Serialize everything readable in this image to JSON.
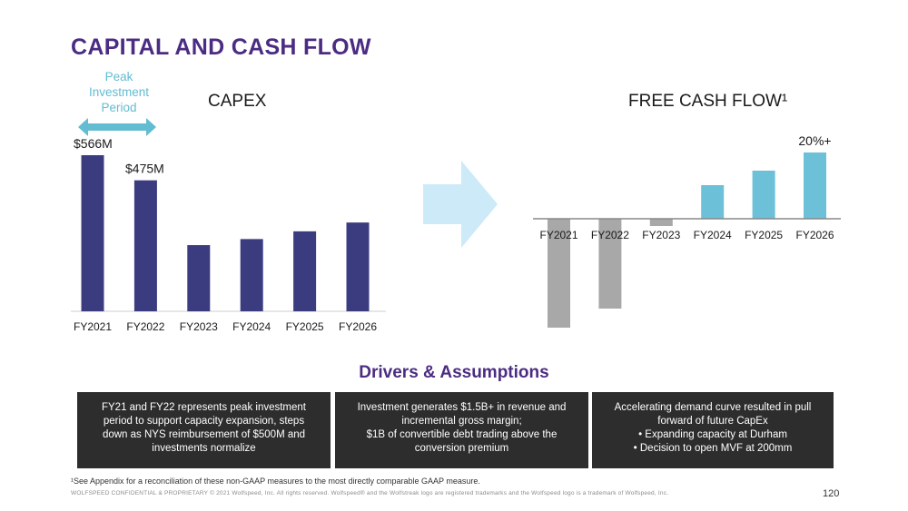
{
  "title": "CAPITAL AND CASH FLOW",
  "peak": {
    "lines": [
      "Peak",
      "Investment",
      "Period"
    ]
  },
  "chart_data": [
    {
      "type": "bar",
      "title": "CAPEX",
      "categories": [
        "FY2021",
        "FY2022",
        "FY2023",
        "FY2024",
        "FY2025",
        "FY2026"
      ],
      "values": [
        566,
        475,
        240,
        262,
        290,
        322
      ],
      "unit": "$M",
      "data_labels": [
        "$566M",
        "$475M",
        "",
        "",
        "",
        ""
      ],
      "colors": [
        "#3b3c80"
      ]
    },
    {
      "type": "bar",
      "title": "FREE CASH FLOW¹",
      "categories": [
        "FY2021",
        "FY2022",
        "FY2023",
        "FY2024",
        "FY2025",
        "FY2026"
      ],
      "values": [
        -120,
        -99,
        -8,
        37,
        53,
        73
      ],
      "data_labels": [
        "",
        "",
        "",
        "",
        "",
        "20%+"
      ],
      "colors": {
        "negative": "#a8a8a8",
        "positive": "#6cc0d8"
      }
    }
  ],
  "drivers": {
    "title": "Drivers & Assumptions",
    "boxes": [
      {
        "lines": [
          "FY21 and FY22 represents peak investment",
          "period to support capacity expansion, steps",
          "down as NYS reimbursement of $500M and",
          "investments normalize"
        ]
      },
      {
        "lines": [
          "Investment generates $1.5B+ in revenue and",
          "incremental gross margin;",
          "$1B of convertible debt trading above the",
          "conversion premium"
        ]
      },
      {
        "lines": [
          "Accelerating demand curve resulted in pull",
          "forward of future CapEx",
          "• Expanding capacity at Durham",
          "• Decision to open MVF at 200mm"
        ]
      }
    ]
  },
  "footnote": "¹See Appendix for a reconciliation of these non-GAAP measures to the most directly comparable GAAP measure.",
  "legal": "WOLFSPEED CONFIDENTIAL & PROPRIETARY © 2021 Wolfspeed, Inc. All rights reserved. Wolfspeed® and the Wolfstreak logo are registered trademarks and the Wolfspeed logo is a trademark of Wolfspeed, Inc.",
  "page_number": "120",
  "colors": {
    "title": "#4b2c82",
    "peak": "#62bcd2",
    "arrow": "#cdeaf8",
    "box_bg": "#2d2d2d"
  },
  "icons": {
    "peak_arrow": "double-arrow-icon",
    "flow_arrow": "right-arrow-icon"
  }
}
